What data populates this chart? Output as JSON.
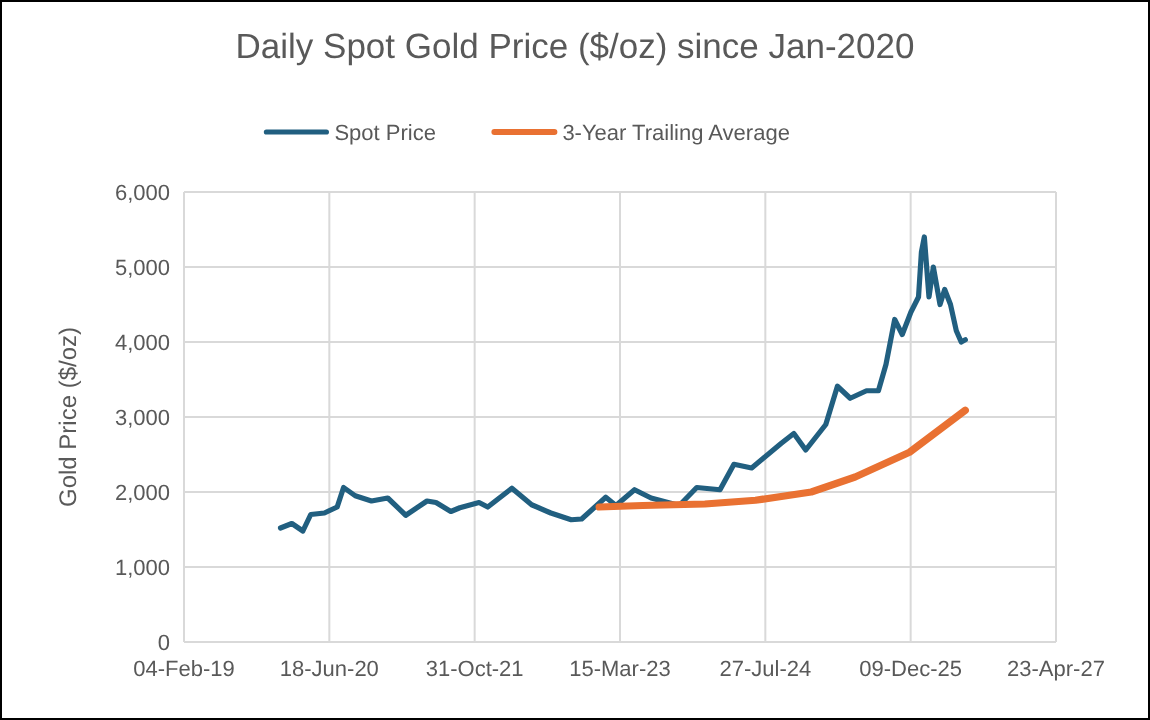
{
  "chart_data": {
    "type": "line",
    "title": "Daily Spot Gold Price ($/oz) since Jan-2020",
    "ylabel": "Gold Price ($/oz)",
    "xlim": [
      "2019-02-04",
      "2027-04-23"
    ],
    "xticks": [
      {
        "value": "2019-02-04",
        "label": "04-Feb-19"
      },
      {
        "value": "2020-06-18",
        "label": "18-Jun-20"
      },
      {
        "value": "2021-10-31",
        "label": "31-Oct-21"
      },
      {
        "value": "2023-03-15",
        "label": "15-Mar-23"
      },
      {
        "value": "2024-07-27",
        "label": "27-Jul-24"
      },
      {
        "value": "2025-12-09",
        "label": "09-Dec-25"
      },
      {
        "value": "2027-04-23",
        "label": "23-Apr-27"
      }
    ],
    "ylim": [
      0,
      6000
    ],
    "yticks": [
      0,
      {
        "value": 1000,
        "label": "1,000"
      },
      {
        "value": 2000,
        "label": "2,000"
      },
      {
        "value": 3000,
        "label": "3,000"
      },
      {
        "value": 4000,
        "label": "4,000"
      },
      {
        "value": 5000,
        "label": "5,000"
      },
      {
        "value": 6000,
        "label": "6,000"
      }
    ],
    "grid": true,
    "legend": "top",
    "series": [
      {
        "name": "Spot Price",
        "color": "#215f80",
        "x": [
          "2020-01-02",
          "2020-02-10",
          "2020-03-19",
          "2020-04-15",
          "2020-06-01",
          "2020-07-15",
          "2020-08-06",
          "2020-09-15",
          "2020-11-10",
          "2021-01-05",
          "2021-03-08",
          "2021-05-20",
          "2021-06-20",
          "2021-08-10",
          "2021-09-10",
          "2021-11-15",
          "2021-12-15",
          "2022-03-08",
          "2022-05-15",
          "2022-07-20",
          "2022-09-28",
          "2022-11-03",
          "2023-01-25",
          "2023-03-01",
          "2023-05-04",
          "2023-06-30",
          "2023-10-05",
          "2023-12-04",
          "2024-02-22",
          "2024-04-10",
          "2024-06-10",
          "2024-07-20",
          "2024-09-20",
          "2024-11-02",
          "2024-12-13",
          "2025-02-20",
          "2025-04-01",
          "2025-05-15",
          "2025-07-10",
          "2025-08-20",
          "2025-09-15",
          "2025-10-15",
          "2025-11-10",
          "2025-12-10",
          "2026-01-05",
          "2026-01-15",
          "2026-01-25",
          "2026-02-10",
          "2026-02-25",
          "2026-03-20",
          "2026-04-05",
          "2026-04-25",
          "2026-05-15",
          "2026-06-01",
          "2026-06-15"
        ],
        "values": [
          1520,
          1580,
          1480,
          1700,
          1720,
          1800,
          2060,
          1950,
          1880,
          1920,
          1690,
          1880,
          1860,
          1740,
          1790,
          1860,
          1800,
          2050,
          1830,
          1720,
          1630,
          1640,
          1930,
          1820,
          2030,
          1920,
          1820,
          2060,
          2030,
          2370,
          2320,
          2450,
          2650,
          2780,
          2560,
          2900,
          3410,
          3250,
          3350,
          3350,
          3700,
          4300,
          4100,
          4400,
          4600,
          5200,
          5400,
          4600,
          5000,
          4500,
          4700,
          4500,
          4150,
          4000,
          4030
        ]
      },
      {
        "name": "3-Year Trailing Average",
        "color": "#e97132",
        "x": [
          "2023-01-02",
          "2023-06-01",
          "2024-01-01",
          "2024-06-23",
          "2025-01-01",
          "2025-06-01",
          "2025-12-05",
          "2026-06-15"
        ],
        "values": [
          1800,
          1820,
          1840,
          1890,
          2000,
          2200,
          2530,
          3090
        ]
      }
    ]
  }
}
